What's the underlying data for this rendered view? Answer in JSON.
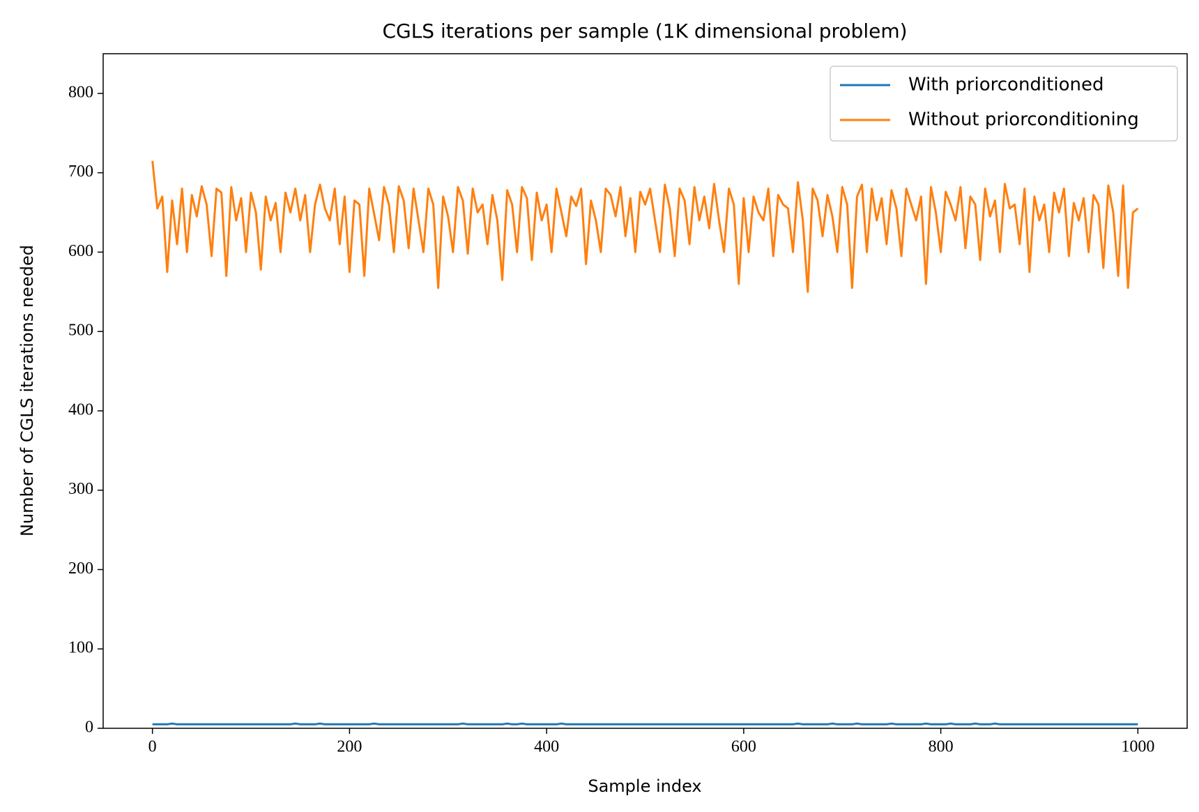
{
  "chart_data": {
    "type": "line",
    "title": "CGLS iterations per sample (1K dimensional problem)",
    "x_label": "Sample index",
    "y_label": "Number of CGLS iterations needed",
    "xlim": [
      -50,
      1050
    ],
    "ylim": [
      0,
      850
    ],
    "xticks": [
      0,
      200,
      400,
      600,
      800,
      1000
    ],
    "yticks": [
      0,
      100,
      200,
      300,
      400,
      500,
      600,
      700,
      800
    ],
    "legend": "upper right",
    "x": [
      0,
      5,
      10,
      15,
      20,
      25,
      30,
      35,
      40,
      45,
      50,
      55,
      60,
      65,
      70,
      75,
      80,
      85,
      90,
      95,
      100,
      105,
      110,
      115,
      120,
      125,
      130,
      135,
      140,
      145,
      150,
      155,
      160,
      165,
      170,
      175,
      180,
      185,
      190,
      195,
      200,
      205,
      210,
      215,
      220,
      225,
      230,
      235,
      240,
      245,
      250,
      255,
      260,
      265,
      270,
      275,
      280,
      285,
      290,
      295,
      300,
      305,
      310,
      315,
      320,
      325,
      330,
      335,
      340,
      345,
      350,
      355,
      360,
      365,
      370,
      375,
      380,
      385,
      390,
      395,
      400,
      405,
      410,
      415,
      420,
      425,
      430,
      435,
      440,
      445,
      450,
      455,
      460,
      465,
      470,
      475,
      480,
      485,
      490,
      495,
      500,
      505,
      510,
      515,
      520,
      525,
      530,
      535,
      540,
      545,
      550,
      555,
      560,
      565,
      570,
      575,
      580,
      585,
      590,
      595,
      600,
      605,
      610,
      615,
      620,
      625,
      630,
      635,
      640,
      645,
      650,
      655,
      660,
      665,
      670,
      675,
      680,
      685,
      690,
      695,
      700,
      705,
      710,
      715,
      720,
      725,
      730,
      735,
      740,
      745,
      750,
      755,
      760,
      765,
      770,
      775,
      780,
      785,
      790,
      795,
      800,
      805,
      810,
      815,
      820,
      825,
      830,
      835,
      840,
      845,
      850,
      855,
      860,
      865,
      870,
      875,
      880,
      885,
      890,
      895,
      900,
      905,
      910,
      915,
      920,
      925,
      930,
      935,
      940,
      945,
      950,
      955,
      960,
      965,
      970,
      975,
      980,
      985,
      990,
      995,
      1000
    ],
    "series": [
      {
        "name": "With priorconditioned",
        "color": "#1f77b4",
        "values": [
          5,
          5,
          5,
          5,
          6,
          5,
          5,
          5,
          5,
          5,
          5,
          5,
          5,
          5,
          5,
          5,
          5,
          5,
          5,
          5,
          5,
          5,
          5,
          5,
          5,
          5,
          5,
          5,
          5,
          6,
          5,
          5,
          5,
          5,
          6,
          5,
          5,
          5,
          5,
          5,
          5,
          5,
          5,
          5,
          5,
          6,
          5,
          5,
          5,
          5,
          5,
          5,
          5,
          5,
          5,
          5,
          5,
          5,
          5,
          5,
          5,
          5,
          5,
          6,
          5,
          5,
          5,
          5,
          5,
          5,
          5,
          5,
          6,
          5,
          5,
          6,
          5,
          5,
          5,
          5,
          5,
          5,
          5,
          6,
          5,
          5,
          5,
          5,
          5,
          5,
          5,
          5,
          5,
          5,
          5,
          5,
          5,
          5,
          5,
          5,
          5,
          5,
          5,
          5,
          5,
          5,
          5,
          5,
          5,
          5,
          5,
          5,
          5,
          5,
          5,
          5,
          5,
          5,
          5,
          5,
          5,
          5,
          5,
          5,
          5,
          5,
          5,
          5,
          5,
          5,
          5,
          6,
          5,
          5,
          5,
          5,
          5,
          5,
          6,
          5,
          5,
          5,
          5,
          6,
          5,
          5,
          5,
          5,
          5,
          5,
          6,
          5,
          5,
          5,
          5,
          5,
          5,
          6,
          5,
          5,
          5,
          5,
          6,
          5,
          5,
          5,
          5,
          6,
          5,
          5,
          5,
          6,
          5,
          5,
          5,
          5,
          5,
          5,
          5,
          5,
          5,
          5,
          5,
          5,
          5,
          5,
          5,
          5,
          5,
          5,
          5,
          5,
          5,
          5,
          5,
          5,
          5,
          5,
          5,
          5,
          5
        ]
      },
      {
        "name": "Without priorconditioning",
        "color": "#ff7f0e",
        "values": [
          715,
          655,
          670,
          575,
          665,
          610,
          680,
          600,
          672,
          645,
          683,
          660,
          595,
          680,
          675,
          570,
          682,
          640,
          668,
          600,
          675,
          650,
          578,
          670,
          640,
          662,
          600,
          675,
          650,
          680,
          640,
          672,
          600,
          660,
          685,
          655,
          640,
          680,
          610,
          670,
          575,
          665,
          660,
          570,
          680,
          648,
          615,
          682,
          660,
          600,
          683,
          665,
          605,
          680,
          640,
          600,
          680,
          660,
          555,
          670,
          645,
          600,
          682,
          665,
          598,
          680,
          650,
          660,
          610,
          672,
          640,
          565,
          678,
          660,
          600,
          682,
          668,
          590,
          675,
          640,
          660,
          600,
          680,
          650,
          620,
          670,
          658,
          680,
          585,
          665,
          640,
          600,
          680,
          672,
          645,
          682,
          620,
          668,
          600,
          676,
          660,
          680,
          640,
          600,
          685,
          655,
          595,
          680,
          665,
          610,
          682,
          640,
          670,
          630,
          686,
          640,
          600,
          680,
          660,
          560,
          668,
          600,
          670,
          650,
          640,
          680,
          595,
          672,
          660,
          655,
          600,
          688,
          640,
          550,
          680,
          665,
          620,
          672,
          645,
          600,
          682,
          660,
          555,
          670,
          685,
          600,
          680,
          640,
          668,
          610,
          678,
          655,
          595,
          680,
          660,
          640,
          670,
          560,
          682,
          650,
          600,
          676,
          660,
          640,
          682,
          605,
          670,
          660,
          590,
          680,
          645,
          665,
          600,
          686,
          655,
          660,
          610,
          680,
          575,
          670,
          640,
          660,
          600,
          675,
          650,
          680,
          595,
          662,
          640,
          668,
          600,
          672,
          660,
          580,
          684,
          650,
          570,
          684,
          555,
          650,
          655
        ]
      }
    ]
  }
}
